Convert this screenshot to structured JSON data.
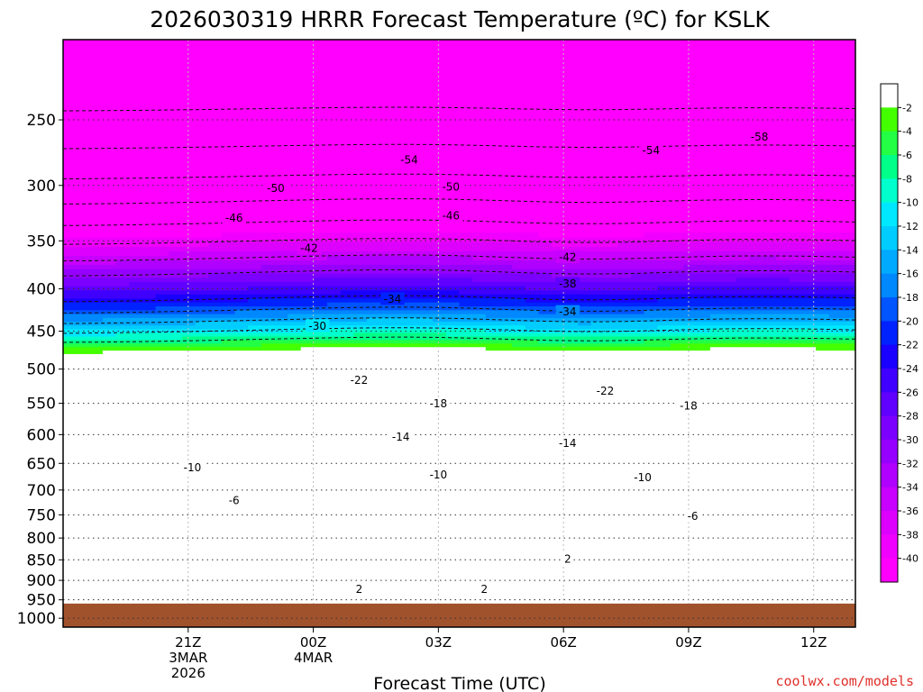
{
  "chart_data": {
    "type": "heatmap",
    "title": "2026030319 HRRR Forecast Temperature (ºC) for KSLK",
    "xlabel": "Forecast Time (UTC)",
    "ylabel": "",
    "credit": "coolwx.com/models",
    "x_hours": [
      -1,
      18
    ],
    "y_pressure_range": [
      200,
      1025
    ],
    "ground_level_hpa": 960,
    "y_ticks": [
      250,
      300,
      350,
      400,
      450,
      500,
      550,
      600,
      650,
      700,
      750,
      800,
      850,
      900,
      950,
      1000
    ],
    "y_tick_labels": [
      "250",
      "300",
      "350",
      "400",
      "450",
      "500",
      "550",
      "600",
      "650",
      "700",
      "750",
      "800",
      "850",
      "900",
      "950",
      "1000"
    ],
    "x_ticks": [
      {
        "hour": 2,
        "lines": [
          "21Z",
          "3MAR",
          "2026"
        ]
      },
      {
        "hour": 5,
        "lines": [
          "00Z",
          "4MAR"
        ]
      },
      {
        "hour": 8,
        "lines": [
          "03Z"
        ]
      },
      {
        "hour": 11,
        "lines": [
          "06Z"
        ]
      },
      {
        "hour": 14,
        "lines": [
          "09Z"
        ]
      },
      {
        "hour": 17,
        "lines": [
          "12Z"
        ]
      }
    ],
    "colorbar": {
      "levels": [
        -42,
        -40,
        -38,
        -36,
        -34,
        -32,
        -30,
        -28,
        -26,
        -24,
        -22,
        -20,
        -18,
        -16,
        -14,
        -12,
        -10,
        -8,
        -6,
        -4,
        -2,
        0
      ],
      "tick_labels": [
        "-2",
        "-4",
        "-6",
        "-8",
        "-10",
        "-12",
        "-14",
        "-16",
        "-18",
        "-20",
        "-22",
        "-24",
        "-26",
        "-28",
        "-30",
        "-32",
        "-34",
        "-36",
        "-38",
        "-40"
      ],
      "colors": [
        "#ff00ff",
        "#f000ff",
        "#dd00ff",
        "#c800ff",
        "#b000ff",
        "#9600ff",
        "#7c00ff",
        "#6000ff",
        "#4000ff",
        "#1a00ff",
        "#0022ff",
        "#0055ff",
        "#0088ff",
        "#00aaff",
        "#00ccff",
        "#00e8ff",
        "#00ffcc",
        "#00ff88",
        "#22ff44",
        "#44ff00",
        "#ffffff"
      ],
      "above_zero_color": "#ffffff"
    },
    "ground_color": "#a0522d",
    "isotherms": [
      {
        "value": -58,
        "hour": 15.7,
        "p": 262
      },
      {
        "value": -54,
        "hour": 7.3,
        "p": 279
      },
      {
        "value": -54,
        "hour": 13.1,
        "p": 272
      },
      {
        "value": -50,
        "hour": 4.1,
        "p": 302
      },
      {
        "value": -50,
        "hour": 8.3,
        "p": 301
      },
      {
        "value": -46,
        "hour": 3.1,
        "p": 328
      },
      {
        "value": -46,
        "hour": 8.3,
        "p": 326
      },
      {
        "value": -42,
        "hour": 4.9,
        "p": 357
      },
      {
        "value": -42,
        "hour": 11.1,
        "p": 366
      },
      {
        "value": -38,
        "hour": 11.1,
        "p": 394
      },
      {
        "value": -34,
        "hour": 6.9,
        "p": 411
      },
      {
        "value": -34,
        "hour": 11.1,
        "p": 426
      },
      {
        "value": -30,
        "hour": 5.1,
        "p": 443
      },
      {
        "value": -22,
        "hour": 6.1,
        "p": 515
      },
      {
        "value": -22,
        "hour": 12.0,
        "p": 531
      },
      {
        "value": -18,
        "hour": 8.0,
        "p": 550
      },
      {
        "value": -18,
        "hour": 14.0,
        "p": 553
      },
      {
        "value": -14,
        "hour": 7.1,
        "p": 603
      },
      {
        "value": -14,
        "hour": 11.1,
        "p": 614
      },
      {
        "value": -10,
        "hour": 2.1,
        "p": 657
      },
      {
        "value": -10,
        "hour": 8.0,
        "p": 670
      },
      {
        "value": -10,
        "hour": 12.9,
        "p": 675
      },
      {
        "value": -6,
        "hour": 3.1,
        "p": 720
      },
      {
        "value": -6,
        "hour": 14.1,
        "p": 752
      },
      {
        "value": 2,
        "hour": 11.1,
        "p": 847
      },
      {
        "value": 2,
        "hour": 6.1,
        "p": 922
      },
      {
        "value": 2,
        "hour": 9.1,
        "p": 922
      }
    ]
  }
}
